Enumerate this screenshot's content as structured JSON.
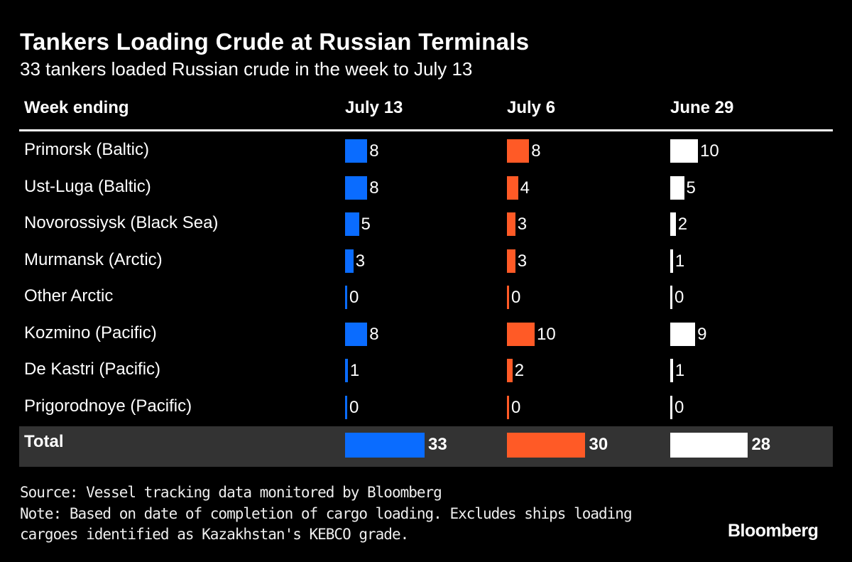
{
  "chart_data": {
    "type": "table",
    "title": "Tankers Loading Crude at Russian Terminals",
    "subtitle": "33 tankers loaded Russian crude in the week to July 13",
    "row_header": "Week ending",
    "columns": [
      "July 13",
      "July 6",
      "June 29"
    ],
    "colors": [
      "#0a6cff",
      "#ff5a26",
      "#ffffff"
    ],
    "rows": [
      {
        "label": "Primorsk (Baltic)",
        "values": [
          8,
          8,
          10
        ]
      },
      {
        "label": "Ust-Luga (Baltic)",
        "values": [
          8,
          4,
          5
        ]
      },
      {
        "label": "Novorossiysk (Black Sea)",
        "values": [
          5,
          3,
          2
        ]
      },
      {
        "label": "Murmansk (Arctic)",
        "values": [
          3,
          3,
          1
        ]
      },
      {
        "label": "Other Arctic",
        "values": [
          0,
          0,
          0
        ]
      },
      {
        "label": "Kozmino (Pacific)",
        "values": [
          8,
          10,
          9
        ]
      },
      {
        "label": "De Kastri (Pacific)",
        "values": [
          1,
          2,
          1
        ]
      },
      {
        "label": "Prigorodnoye (Pacific)",
        "values": [
          0,
          0,
          0
        ]
      }
    ],
    "total": {
      "label": "Total",
      "values": [
        33,
        30,
        28
      ]
    }
  },
  "footer": {
    "source": "Source: Vessel tracking data monitored by Bloomberg",
    "note_line1": "Note: Based on date of completion of cargo loading. Excludes ships loading",
    "note_line2": "cargoes identified as Kazakhstan's KEBCO grade.",
    "logo": "Bloomberg"
  }
}
